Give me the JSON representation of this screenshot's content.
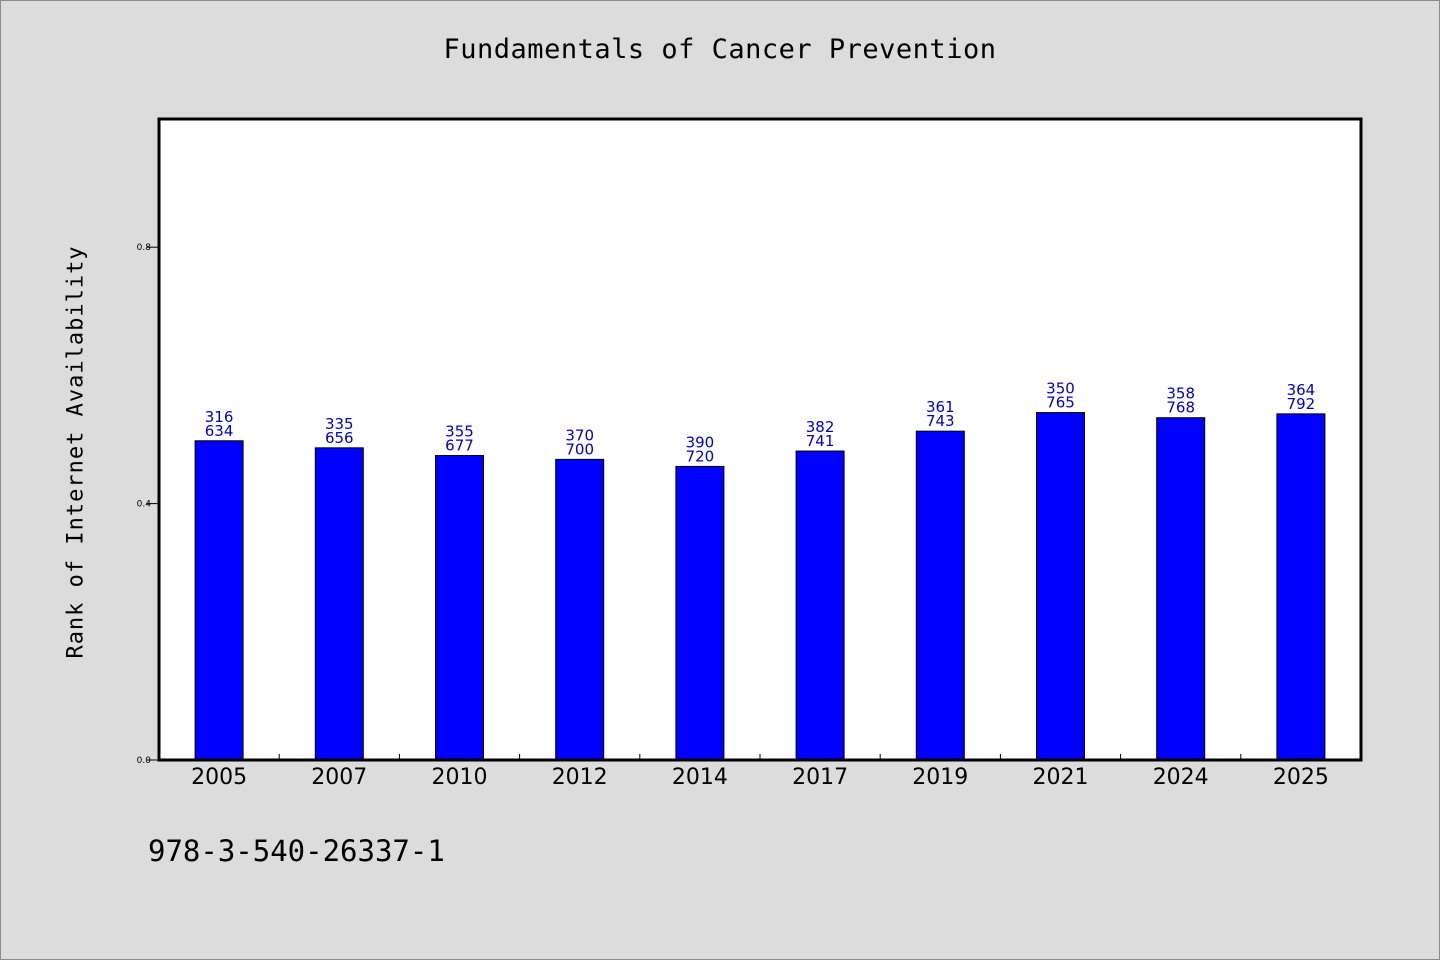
{
  "chart_data": {
    "type": "bar",
    "title": "Fundamentals of Cancer Prevention",
    "xlabel": "",
    "ylabel": "Rank of Internet Availability",
    "categories": [
      "2005",
      "2007",
      "2010",
      "2012",
      "2014",
      "2017",
      "2019",
      "2021",
      "2024",
      "2025"
    ],
    "values": [
      0.498,
      0.487,
      0.475,
      0.469,
      0.458,
      0.482,
      0.513,
      0.542,
      0.534,
      0.54
    ],
    "data_labels": [
      [
        "316",
        "634"
      ],
      [
        "335",
        "656"
      ],
      [
        "355",
        "677"
      ],
      [
        "370",
        "700"
      ],
      [
        "390",
        "720"
      ],
      [
        "382",
        "741"
      ],
      [
        "361",
        "743"
      ],
      [
        "350",
        "765"
      ],
      [
        "358",
        "768"
      ],
      [
        "364",
        "792"
      ]
    ],
    "ylim": [
      0,
      1.0
    ],
    "yticks": [
      0.0,
      0.4,
      0.8
    ],
    "ytick_labels": [
      "0.0",
      "0.4",
      "0.8"
    ],
    "grid": false,
    "legend": "none",
    "colors": {
      "bar": "#0000ff",
      "label": "#0000cc",
      "background": "#dcdcdc",
      "plot_area": "#ffffff"
    }
  },
  "footer_text": "978-3-540-26337-1"
}
